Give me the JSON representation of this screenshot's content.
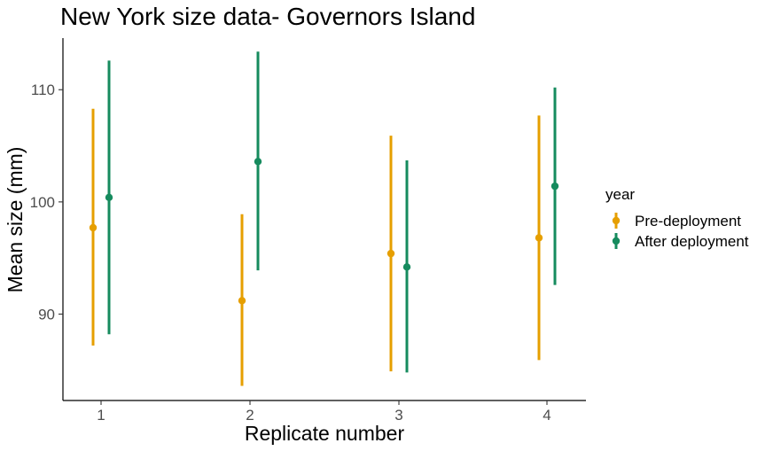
{
  "chart_data": {
    "type": "scatter",
    "title": "New York size data- Governors Island",
    "xlabel": "Replicate number",
    "ylabel": "Mean size (mm)",
    "categories": [
      "1",
      "2",
      "3",
      "4"
    ],
    "yticks": [
      "90",
      "100",
      "110"
    ],
    "ylim": [
      82.3,
      114.6
    ],
    "legend": {
      "title": "year",
      "position": "right"
    },
    "series": [
      {
        "name": "Pre-deployment",
        "color": "#E69F00",
        "values": [
          97.7,
          91.2,
          95.4,
          96.8
        ],
        "lower": [
          87.2,
          83.6,
          84.9,
          85.9
        ],
        "upper": [
          108.3,
          98.9,
          105.9,
          107.7
        ]
      },
      {
        "name": "After deployment",
        "color": "#168B5E",
        "values": [
          100.4,
          103.6,
          94.2,
          101.4
        ],
        "lower": [
          88.2,
          93.9,
          84.8,
          92.6
        ],
        "upper": [
          112.6,
          113.4,
          103.7,
          110.2
        ]
      }
    ]
  }
}
